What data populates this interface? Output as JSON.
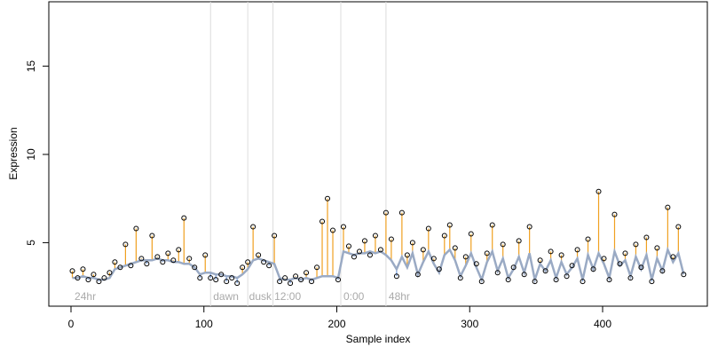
{
  "chart_data": {
    "type": "lollipop-trend",
    "xlabel": "Sample index",
    "ylabel": "Expression",
    "xlim": [
      -16.7,
      478.8
    ],
    "ylim": [
      1.4,
      18.65
    ],
    "xticks": [
      0,
      100,
      200,
      300,
      400
    ],
    "yticks": [
      5,
      10,
      15
    ],
    "x": [
      1,
      5,
      9,
      13,
      17,
      21,
      25,
      29,
      33,
      37,
      41,
      45,
      49,
      53,
      57,
      61,
      65,
      69,
      73,
      77,
      81,
      85,
      89,
      93,
      97,
      101,
      105,
      109,
      113,
      117,
      121,
      125,
      129,
      133,
      137,
      141,
      145,
      149,
      153,
      157,
      161,
      165,
      169,
      173,
      177,
      181,
      185,
      189,
      193,
      197,
      201,
      205,
      209,
      213,
      217,
      221,
      225,
      229,
      233,
      237,
      241,
      245,
      249,
      253,
      257,
      261,
      265,
      269,
      273,
      277,
      281,
      285,
      289,
      293,
      297,
      301,
      305,
      309,
      313,
      317,
      321,
      325,
      329,
      333,
      337,
      341,
      345,
      349,
      353,
      357,
      361,
      365,
      369,
      373,
      377,
      381,
      385,
      389,
      393,
      397,
      401,
      405,
      409,
      413,
      417,
      421,
      425,
      429,
      433,
      437,
      441,
      445,
      449,
      453,
      457,
      461
    ],
    "series": [
      {
        "color": "#000000",
        "values": [
          3.4,
          3.0,
          3.5,
          2.9,
          3.2,
          2.8,
          3.0,
          3.3,
          3.9,
          3.6,
          4.9,
          3.7,
          5.8,
          4.1,
          3.8,
          5.4,
          4.2,
          3.9,
          4.4,
          4.0,
          4.6,
          6.4,
          4.1,
          3.6,
          3.0,
          4.3,
          3.0,
          2.9,
          3.2,
          2.8,
          3.0,
          2.7,
          3.6,
          3.9,
          5.9,
          4.3,
          3.9,
          3.7,
          5.4,
          2.8,
          3.0,
          2.7,
          3.1,
          2.9,
          3.3,
          2.8,
          3.6,
          6.2,
          7.5,
          5.7,
          2.9,
          5.9,
          4.8,
          4.2,
          4.5,
          5.1,
          4.3,
          5.4,
          4.6,
          6.7,
          5.2,
          3.1,
          6.7,
          4.3,
          5.0,
          3.2,
          4.6,
          5.8,
          4.1,
          3.5,
          5.4,
          6.0,
          4.7,
          3.0,
          4.2,
          5.5,
          3.8,
          2.8,
          4.4,
          6.0,
          3.3,
          4.9,
          2.9,
          3.6,
          5.1,
          3.2,
          5.9,
          2.8,
          4.0,
          3.4,
          4.5,
          2.9,
          4.3,
          3.1,
          3.7,
          4.6,
          2.8,
          5.2,
          3.5,
          7.9,
          4.1,
          2.9,
          6.6,
          3.8,
          4.4,
          3.0,
          4.9,
          3.6,
          5.3,
          2.8,
          4.7,
          3.4,
          7.0,
          4.2,
          5.9,
          3.2
        ]
      },
      {
        "color": "#9aaac4",
        "values": [
          3.0,
          3.0,
          3.1,
          3.0,
          3.0,
          2.9,
          2.9,
          3.0,
          3.5,
          3.6,
          3.7,
          3.8,
          3.9,
          4.0,
          4.0,
          4.0,
          4.1,
          4.0,
          4.0,
          3.9,
          3.9,
          3.8,
          3.8,
          3.6,
          3.2,
          3.3,
          3.3,
          3.2,
          3.2,
          3.1,
          3.1,
          3.0,
          3.2,
          3.5,
          4.0,
          4.1,
          4.0,
          3.9,
          3.8,
          3.0,
          2.9,
          2.9,
          3.0,
          2.9,
          3.0,
          2.9,
          3.0,
          3.1,
          3.1,
          3.1,
          3.0,
          4.5,
          4.4,
          4.3,
          4.4,
          4.4,
          4.5,
          4.4,
          4.5,
          4.3,
          4.0,
          3.5,
          4.2,
          3.6,
          4.4,
          3.2,
          3.9,
          4.5,
          3.8,
          3.3,
          4.3,
          4.6,
          4.0,
          3.1,
          3.7,
          4.4,
          3.6,
          2.9,
          3.9,
          4.5,
          3.4,
          4.1,
          3.0,
          3.5,
          4.2,
          3.3,
          4.4,
          2.9,
          3.8,
          3.4,
          4.0,
          3.0,
          3.9,
          3.2,
          3.6,
          4.1,
          2.9,
          4.3,
          3.5,
          4.4,
          3.8,
          3.0,
          4.5,
          3.7,
          4.0,
          3.1,
          4.2,
          3.5,
          4.3,
          2.9,
          4.1,
          3.4,
          4.6,
          3.9,
          4.4,
          3.2
        ]
      }
    ],
    "above_color": "#f0a020",
    "below_color": "#6f9be0",
    "markers": [
      105,
      133,
      152,
      203,
      237
    ],
    "annotations": [
      {
        "text": "24hr",
        "x": 2.7
      },
      {
        "text": "dawn",
        "x": 107
      },
      {
        "text": "dusk",
        "x": 134
      },
      {
        "text": "12:00",
        "x": 153
      },
      {
        "text": "0:00",
        "x": 205
      },
      {
        "text": "48hr",
        "x": 239
      }
    ]
  }
}
